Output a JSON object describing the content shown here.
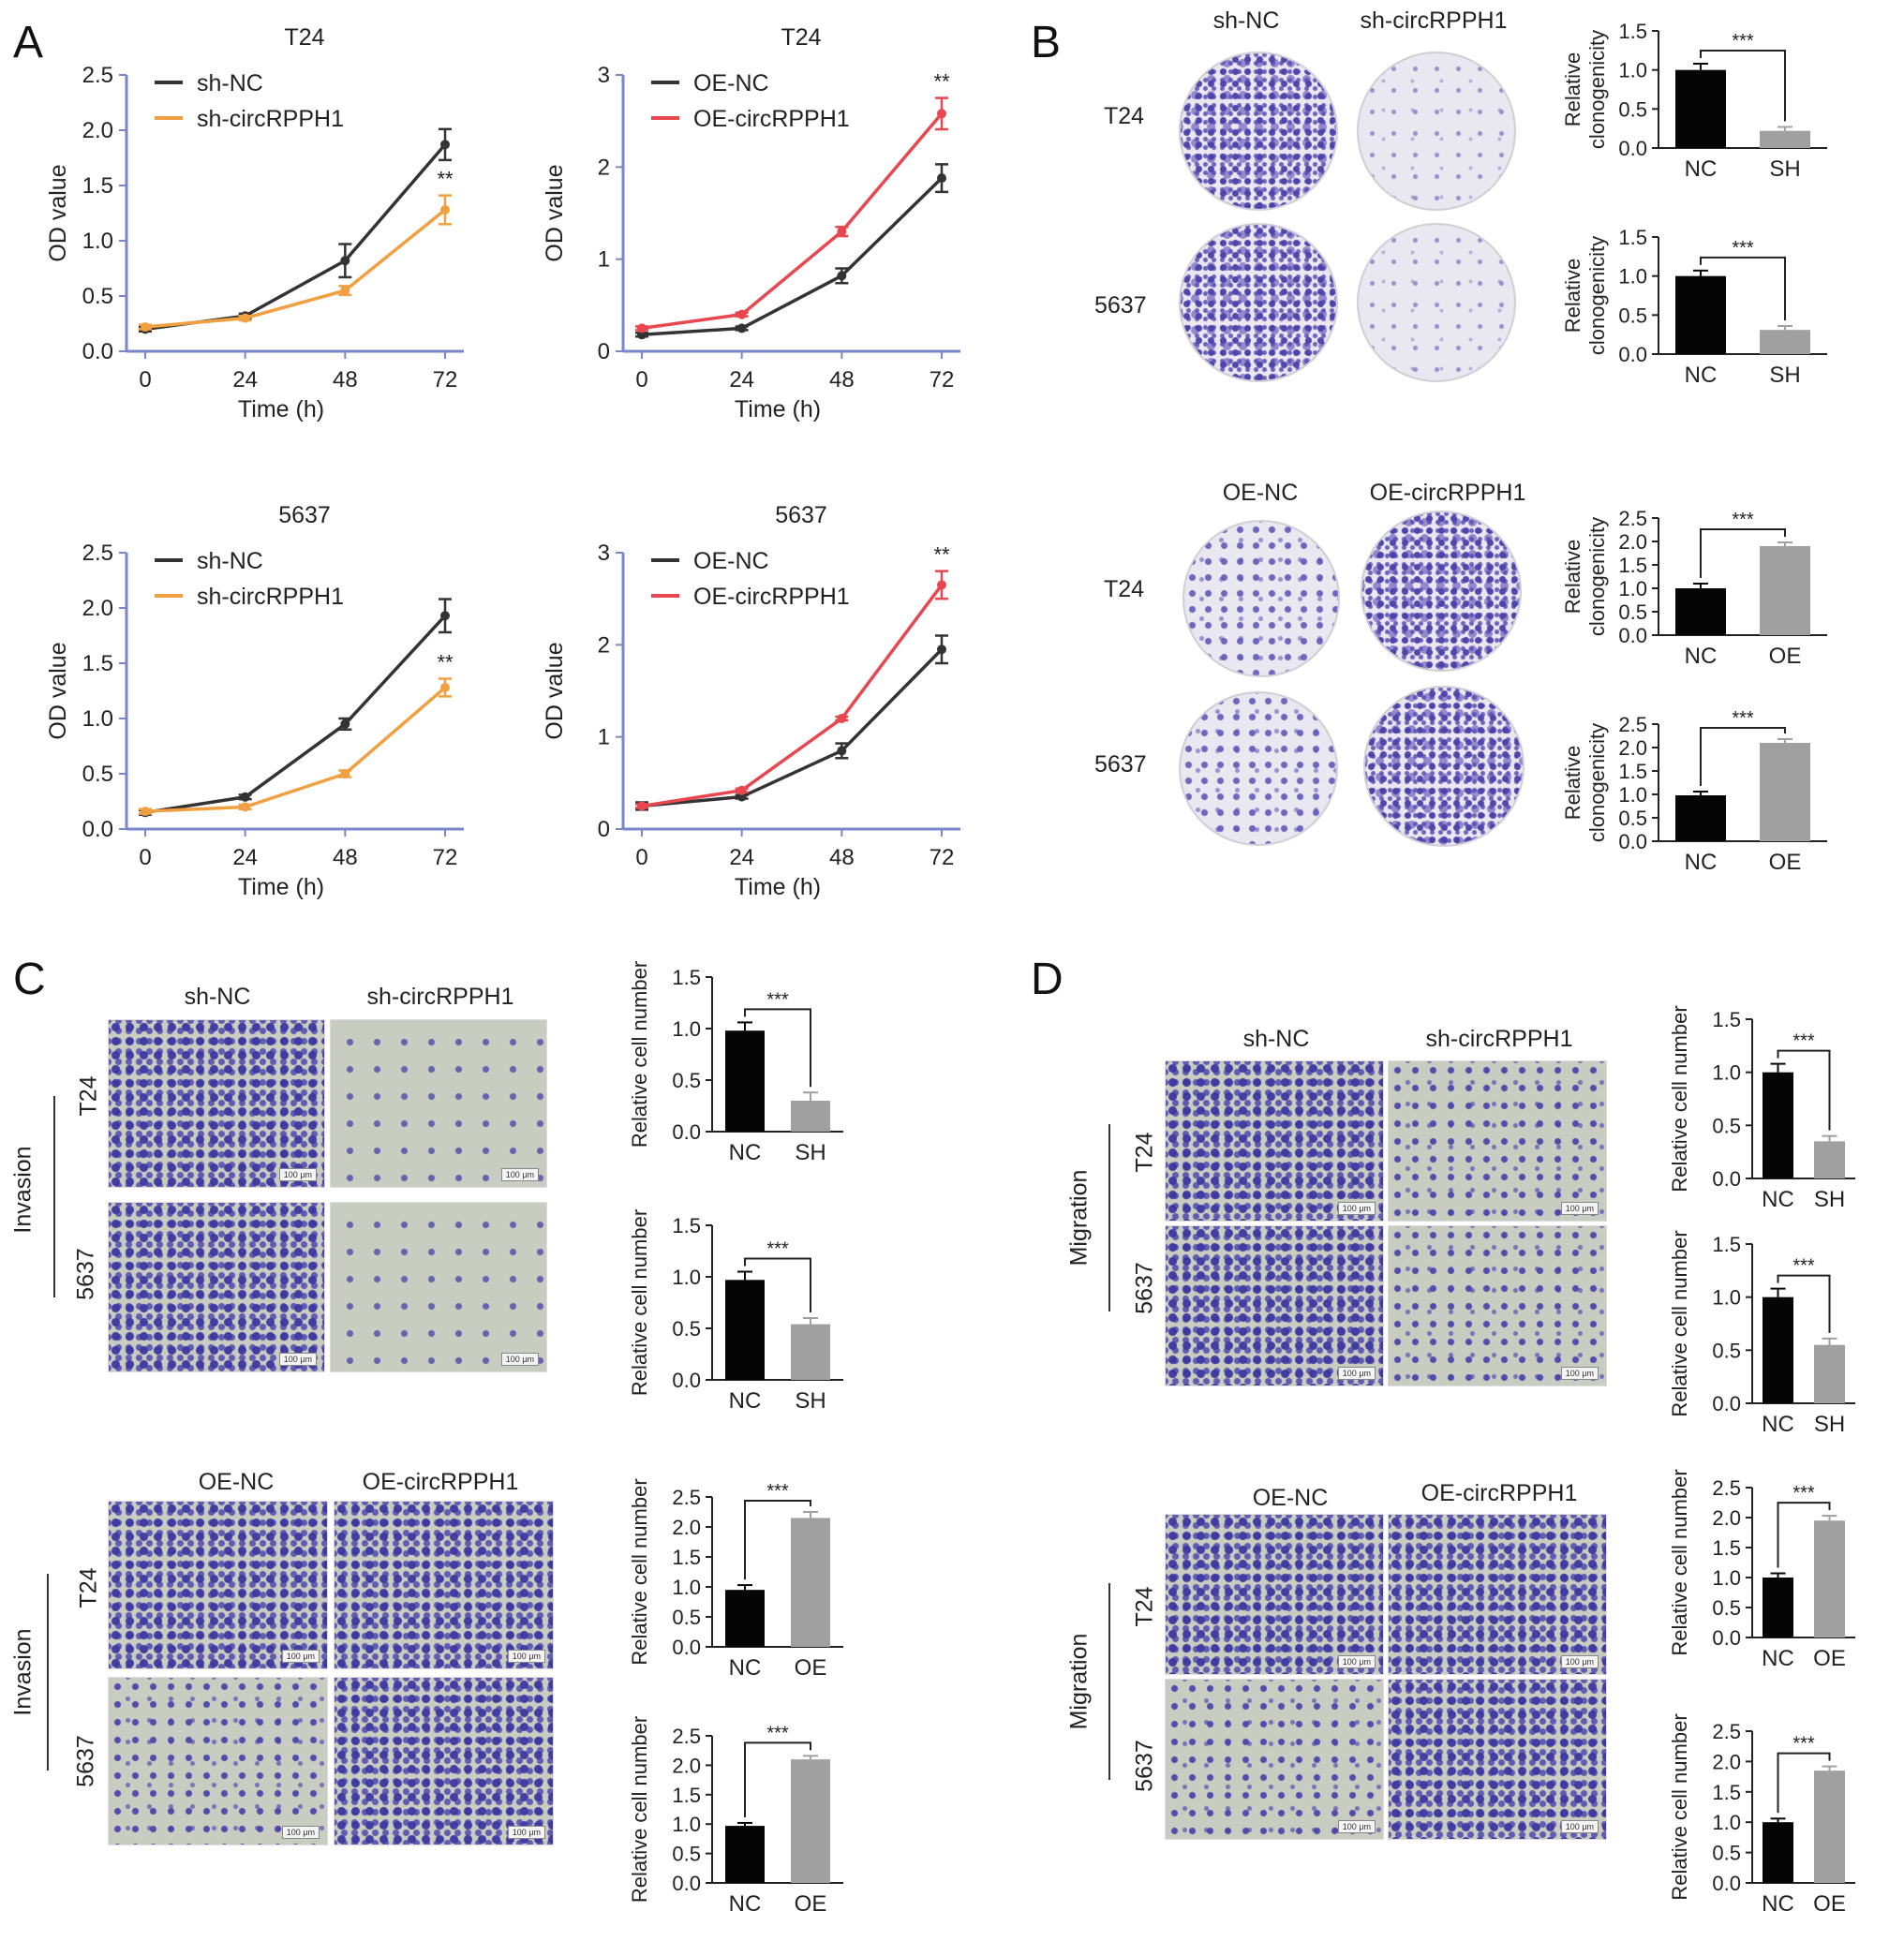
{
  "panels": {
    "A": "A",
    "B": "B",
    "C": "C",
    "D": "D"
  },
  "lines": [
    {
      "title": "T24",
      "xlabel": "Time (h)",
      "ylabel": "OD value",
      "series": [
        {
          "name": "sh-NC",
          "color": "#333333"
        },
        {
          "name": "sh-circRPPH1",
          "color": "#f0a040"
        }
      ]
    },
    {
      "title": "T24",
      "xlabel": "Time (h)",
      "ylabel": "OD value",
      "series": [
        {
          "name": "OE-NC",
          "color": "#333333"
        },
        {
          "name": "OE-circRPPH1",
          "color": "#e8474f"
        }
      ]
    },
    {
      "title": "5637",
      "xlabel": "Time (h)",
      "ylabel": "OD value",
      "series": [
        {
          "name": "sh-NC",
          "color": "#333333"
        },
        {
          "name": "sh-circRPPH1",
          "color": "#f0a040"
        }
      ]
    },
    {
      "title": "5637",
      "xlabel": "Time (h)",
      "ylabel": "OD value",
      "series": [
        {
          "name": "OE-NC",
          "color": "#333333"
        },
        {
          "name": "OE-circRPPH1",
          "color": "#e8474f"
        }
      ]
    }
  ],
  "panelB": {
    "sh_headers": [
      "sh-NC",
      "sh-circRPPH1"
    ],
    "oe_headers": [
      "OE-NC",
      "OE-circRPPH1"
    ],
    "rows": [
      "T24",
      "5637"
    ],
    "ylabel": "Relative clonogenicity"
  },
  "panelC": {
    "sh_headers": [
      "sh-NC",
      "sh-circRPPH1"
    ],
    "oe_headers": [
      "OE-NC",
      "OE-circRPPH1"
    ],
    "rows": [
      "T24",
      "5637"
    ],
    "section": "Invasion",
    "scale": "100 μm",
    "ylabel": "Relative cell number"
  },
  "panelD": {
    "sh_headers": [
      "sh-NC",
      "sh-circRPPH1"
    ],
    "oe_headers": [
      "OE-NC",
      "OE-circRPPH1"
    ],
    "rows": [
      "T24",
      "5637"
    ],
    "section": "Migration",
    "scale": "100 μm",
    "ylabel": "Relative cell number"
  },
  "chart_data": [
    {
      "type": "line",
      "title": "T24",
      "xlabel": "Time (h)",
      "ylabel": "OD value",
      "x": [
        0,
        24,
        48,
        72
      ],
      "xlim": [
        0,
        72
      ],
      "ylim": [
        0,
        2.5
      ],
      "yticks": [
        0.0,
        0.5,
        1.0,
        1.5,
        2.0,
        2.5
      ],
      "series": [
        {
          "name": "sh-NC",
          "values": [
            0.2,
            0.32,
            0.82,
            1.87
          ],
          "err": [
            0.02,
            0.02,
            0.15,
            0.14
          ]
        },
        {
          "name": "sh-circRPPH1",
          "values": [
            0.22,
            0.3,
            0.55,
            1.28
          ],
          "err": [
            0.02,
            0.02,
            0.04,
            0.13
          ]
        }
      ],
      "annotations": [
        {
          "x": 72,
          "text": "**"
        }
      ]
    },
    {
      "type": "line",
      "title": "T24",
      "xlabel": "Time (h)",
      "ylabel": "OD value",
      "x": [
        0,
        24,
        48,
        72
      ],
      "xlim": [
        0,
        72
      ],
      "ylim": [
        0,
        3
      ],
      "yticks": [
        0,
        1,
        2,
        3
      ],
      "series": [
        {
          "name": "OE-NC",
          "values": [
            0.18,
            0.25,
            0.82,
            1.88
          ],
          "err": [
            0.02,
            0.02,
            0.08,
            0.15
          ]
        },
        {
          "name": "OE-circRPPH1",
          "values": [
            0.25,
            0.4,
            1.3,
            2.58
          ],
          "err": [
            0.02,
            0.02,
            0.05,
            0.17
          ]
        }
      ],
      "annotations": [
        {
          "x": 72,
          "text": "**"
        }
      ]
    },
    {
      "type": "line",
      "title": "5637",
      "xlabel": "Time (h)",
      "ylabel": "OD value",
      "x": [
        0,
        24,
        48,
        72
      ],
      "xlim": [
        0,
        72
      ],
      "ylim": [
        0,
        2.5
      ],
      "yticks": [
        0.0,
        0.5,
        1.0,
        1.5,
        2.0,
        2.5
      ],
      "series": [
        {
          "name": "sh-NC",
          "values": [
            0.15,
            0.29,
            0.95,
            1.93
          ],
          "err": [
            0.02,
            0.02,
            0.05,
            0.15
          ]
        },
        {
          "name": "sh-circRPPH1",
          "values": [
            0.16,
            0.2,
            0.5,
            1.28
          ],
          "err": [
            0.02,
            0.02,
            0.03,
            0.08
          ]
        }
      ],
      "annotations": [
        {
          "x": 72,
          "text": "**"
        }
      ]
    },
    {
      "type": "line",
      "title": "5637",
      "xlabel": "Time (h)",
      "ylabel": "OD value",
      "x": [
        0,
        24,
        48,
        72
      ],
      "xlim": [
        0,
        72
      ],
      "ylim": [
        0,
        3
      ],
      "yticks": [
        0,
        1,
        2,
        3
      ],
      "series": [
        {
          "name": "OE-NC",
          "values": [
            0.25,
            0.35,
            0.85,
            1.95
          ],
          "err": [
            0.04,
            0.02,
            0.08,
            0.15
          ]
        },
        {
          "name": "OE-circRPPH1",
          "values": [
            0.25,
            0.42,
            1.2,
            2.65
          ],
          "err": [
            0.02,
            0.02,
            0.02,
            0.15
          ]
        }
      ],
      "annotations": [
        {
          "x": 72,
          "text": "**"
        }
      ]
    },
    {
      "type": "bar",
      "panel": "B",
      "ylabel": "Relative clonogenicity",
      "categories": [
        "NC",
        "SH"
      ],
      "values": [
        1.0,
        0.22
      ],
      "err": [
        0.08,
        0.05
      ],
      "ylim": [
        0,
        1.5
      ],
      "yticks": [
        0.0,
        0.5,
        1.0,
        1.5
      ],
      "significance": "***"
    },
    {
      "type": "bar",
      "panel": "B",
      "ylabel": "Relative clonogenicity",
      "categories": [
        "NC",
        "SH"
      ],
      "values": [
        1.0,
        0.31
      ],
      "err": [
        0.07,
        0.05
      ],
      "ylim": [
        0,
        1.5
      ],
      "yticks": [
        0.0,
        0.5,
        1.0,
        1.5
      ],
      "significance": "***"
    },
    {
      "type": "bar",
      "panel": "B",
      "ylabel": "Relative clonogenicity",
      "categories": [
        "NC",
        "OE"
      ],
      "values": [
        1.0,
        1.9
      ],
      "err": [
        0.1,
        0.08
      ],
      "ylim": [
        0,
        2.5
      ],
      "yticks": [
        0.0,
        0.5,
        1.0,
        1.5,
        2.0,
        2.5
      ],
      "significance": "***"
    },
    {
      "type": "bar",
      "panel": "B",
      "ylabel": "Relative clonogenicity",
      "categories": [
        "NC",
        "OE"
      ],
      "values": [
        0.98,
        2.1
      ],
      "err": [
        0.08,
        0.08
      ],
      "ylim": [
        0,
        2.5
      ],
      "yticks": [
        0.0,
        0.5,
        1.0,
        1.5,
        2.0,
        2.5
      ],
      "significance": "***"
    },
    {
      "type": "bar",
      "panel": "C",
      "ylabel": "Relative cell number",
      "categories": [
        "NC",
        "SH"
      ],
      "values": [
        0.98,
        0.3
      ],
      "err": [
        0.08,
        0.08
      ],
      "ylim": [
        0,
        1.5
      ],
      "yticks": [
        0.0,
        0.5,
        1.0,
        1.5
      ],
      "significance": "***"
    },
    {
      "type": "bar",
      "panel": "C",
      "ylabel": "Relative cell number",
      "categories": [
        "NC",
        "SH"
      ],
      "values": [
        0.97,
        0.54
      ],
      "err": [
        0.08,
        0.06
      ],
      "ylim": [
        0,
        1.5
      ],
      "yticks": [
        0.0,
        0.5,
        1.0,
        1.5
      ],
      "significance": "***"
    },
    {
      "type": "bar",
      "panel": "C",
      "ylabel": "Relative cell number",
      "categories": [
        "NC",
        "OE"
      ],
      "values": [
        0.95,
        2.15
      ],
      "err": [
        0.08,
        0.1
      ],
      "ylim": [
        0,
        2.5
      ],
      "yticks": [
        0.0,
        0.5,
        1.0,
        1.5,
        2.0,
        2.5
      ],
      "significance": "***"
    },
    {
      "type": "bar",
      "panel": "C",
      "ylabel": "Relative cell number",
      "categories": [
        "NC",
        "OE"
      ],
      "values": [
        0.97,
        2.1
      ],
      "err": [
        0.05,
        0.06
      ],
      "ylim": [
        0,
        2.5
      ],
      "yticks": [
        0.0,
        0.5,
        1.0,
        1.5,
        2.0,
        2.5
      ],
      "significance": "***"
    },
    {
      "type": "bar",
      "panel": "D",
      "ylabel": "Relative cell number",
      "categories": [
        "NC",
        "SH"
      ],
      "values": [
        1.0,
        0.35
      ],
      "err": [
        0.08,
        0.05
      ],
      "ylim": [
        0,
        1.5
      ],
      "yticks": [
        0.0,
        0.5,
        1.0,
        1.5
      ],
      "significance": "***"
    },
    {
      "type": "bar",
      "panel": "D",
      "ylabel": "Relative cell number",
      "categories": [
        "NC",
        "SH"
      ],
      "values": [
        1.0,
        0.55
      ],
      "err": [
        0.08,
        0.06
      ],
      "ylim": [
        0,
        1.5
      ],
      "yticks": [
        0.0,
        0.5,
        1.0,
        1.5
      ],
      "significance": "***"
    },
    {
      "type": "bar",
      "panel": "D",
      "ylabel": "Relative cell number",
      "categories": [
        "NC",
        "OE"
      ],
      "values": [
        1.0,
        1.95
      ],
      "err": [
        0.07,
        0.08
      ],
      "ylim": [
        0,
        2.5
      ],
      "yticks": [
        0.0,
        0.5,
        1.0,
        1.5,
        2.0,
        2.5
      ],
      "significance": "***"
    },
    {
      "type": "bar",
      "panel": "D",
      "ylabel": "Relative cell number",
      "categories": [
        "NC",
        "OE"
      ],
      "values": [
        1.0,
        1.85
      ],
      "err": [
        0.06,
        0.07
      ],
      "ylim": [
        0,
        2.5
      ],
      "yticks": [
        0.0,
        0.5,
        1.0,
        1.5,
        2.0,
        2.5
      ],
      "significance": "***"
    }
  ]
}
